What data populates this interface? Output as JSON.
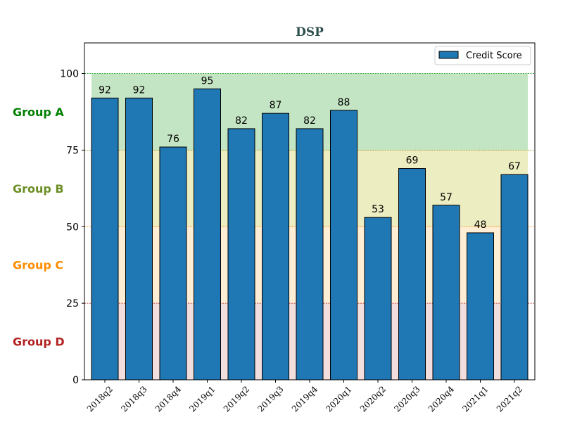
{
  "chart_data": {
    "type": "bar",
    "title": "DSP",
    "title_color": "#2f4f4f",
    "xlabel": "",
    "ylabel": "",
    "categories": [
      "2018q2",
      "2018q3",
      "2018q4",
      "2019q1",
      "2019q2",
      "2019q3",
      "2019q4",
      "2020q1",
      "2020q2",
      "2020q3",
      "2020q4",
      "2021q1",
      "2021q2"
    ],
    "series": [
      {
        "name": "Credit Score",
        "values": [
          92,
          92,
          76,
          95,
          82,
          87,
          82,
          88,
          53,
          69,
          57,
          48,
          67
        ],
        "color": "#1f77b4"
      }
    ],
    "ylim": [
      0,
      110
    ],
    "yticks": [
      0,
      25,
      50,
      75,
      100
    ],
    "grid": false,
    "legend": "top-right",
    "bands": [
      {
        "label": "Group A",
        "from": 75,
        "to": 100,
        "color": "#2ca02c",
        "label_color": "#008000",
        "line_color": "#2ca02c"
      },
      {
        "label": "Group B",
        "from": 50,
        "to": 75,
        "color": "#bcbd22",
        "label_color": "#6b8e23",
        "line_color": "#8b8b00"
      },
      {
        "label": "Group C",
        "from": 25,
        "to": 50,
        "color": "#ffbf66",
        "label_color": "#ff8c00",
        "line_color": "#ff8c00"
      },
      {
        "label": "Group D",
        "from": 0,
        "to": 25,
        "color": "#d48a8a",
        "label_color": "#b22222",
        "line_color": "#b22222"
      }
    ]
  }
}
